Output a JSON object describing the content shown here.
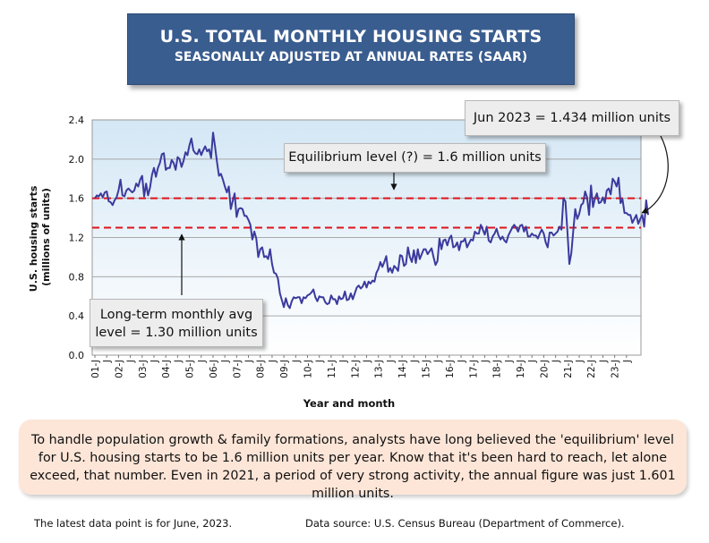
{
  "title": {
    "line1": "U.S. TOTAL MONTHLY HOUSING STARTS",
    "line2": "SEASONALLY ADJUSTED AT ANNUAL RATES (SAAR)"
  },
  "annotations": {
    "latest": "Jun 2023 = 1.434 million units",
    "equilibrium": "Equilibrium level (?) = 1.6 million units",
    "longterm_line1": "Long-term monthly avg",
    "longterm_line2": "level = 1.30 million units"
  },
  "note_text": "To handle population growth & family formations, analysts have long believed the 'equilibrium' level for U.S. housing starts to be 1.6 million units per year. Know that it's been hard to reach, let alone exceed, that number. Even in 2021, a period of very strong activity, the annual figure was just 1.601 million units.",
  "footer": {
    "left": "The latest data point is for June, 2023.",
    "right": "Data source: U.S. Census Bureau (Department of Commerce)."
  },
  "colors": {
    "title_bg": "#3a5d8f",
    "series": "#3b3a9e",
    "reference_line": "#e0121b",
    "note_bg": "#fde6d8"
  },
  "chart_data": {
    "type": "line",
    "title": "U.S. TOTAL MONTHLY HOUSING STARTS",
    "subtitle": "SEASONALLY ADJUSTED AT ANNUAL RATES (SAAR)",
    "xlabel": "Year and month",
    "ylabel": "U.S. housing starts (millions of units)",
    "ylim": [
      0,
      2.4
    ],
    "yticks": [
      "0.0",
      "0.4",
      "0.8",
      "1.2",
      "1.6",
      "2.0",
      "2.4"
    ],
    "xticks": [
      "01-J",
      "J",
      "02-J",
      "J",
      "03-J",
      "J",
      "04-J",
      "J",
      "05-J",
      "J",
      "06-J",
      "J",
      "07-J",
      "J",
      "08-J",
      "J",
      "09-J",
      "J",
      "10-J",
      "J",
      "11-J",
      "J",
      "12-J",
      "J",
      "13-J",
      "J",
      "14-J",
      "J",
      "15-J",
      "J",
      "16-J",
      "J",
      "17-J",
      "J",
      "18-J",
      "J",
      "19-J",
      "J",
      "20-J",
      "J",
      "21-J",
      "J",
      "22-J",
      "J",
      "23-J",
      "J"
    ],
    "grid": true,
    "legend": "none",
    "reference_lines": [
      {
        "label": "Equilibrium level (?) = 1.6 million units",
        "y": 1.6
      },
      {
        "label": "Long-term monthly avg level = 1.30 million units",
        "y": 1.3
      }
    ],
    "series": [
      {
        "start": "2001-01",
        "frequency": "monthly",
        "values": [
          1.6,
          1.63,
          1.62,
          1.65,
          1.61,
          1.66,
          1.67,
          1.57,
          1.56,
          1.53,
          1.58,
          1.61,
          1.68,
          1.79,
          1.63,
          1.62,
          1.68,
          1.7,
          1.68,
          1.66,
          1.68,
          1.75,
          1.72,
          1.79,
          1.83,
          1.62,
          1.75,
          1.63,
          1.71,
          1.84,
          1.91,
          1.82,
          1.91,
          1.96,
          2.05,
          2.06,
          1.89,
          1.91,
          1.91,
          1.99,
          1.96,
          1.89,
          2.02,
          2.0,
          1.92,
          1.98,
          2.07,
          2.04,
          2.14,
          2.21,
          2.09,
          2.06,
          2.05,
          2.1,
          2.04,
          2.09,
          2.13,
          2.08,
          2.1,
          2.01,
          2.27,
          2.13,
          1.97,
          1.83,
          1.85,
          1.79,
          1.72,
          1.66,
          1.72,
          1.49,
          1.57,
          1.65,
          1.41,
          1.49,
          1.5,
          1.49,
          1.42,
          1.42,
          1.38,
          1.33,
          1.18,
          1.26,
          1.19,
          1.0,
          1.08,
          1.1,
          1.0,
          1.01,
          0.98,
          1.08,
          0.93,
          0.84,
          0.83,
          0.78,
          0.63,
          0.56,
          0.49,
          0.58,
          0.51,
          0.48,
          0.55,
          0.59,
          0.58,
          0.59,
          0.59,
          0.53,
          0.59,
          0.58,
          0.61,
          0.62,
          0.64,
          0.67,
          0.59,
          0.55,
          0.6,
          0.59,
          0.59,
          0.54,
          0.52,
          0.53,
          0.61,
          0.57,
          0.57,
          0.52,
          0.6,
          0.57,
          0.58,
          0.65,
          0.56,
          0.57,
          0.63,
          0.57,
          0.63,
          0.69,
          0.71,
          0.68,
          0.7,
          0.75,
          0.69,
          0.75,
          0.73,
          0.76,
          0.75,
          0.84,
          0.88,
          0.95,
          0.9,
          0.95,
          1.01,
          0.85,
          0.89,
          0.84,
          0.91,
          0.89,
          0.86,
          1.02,
          1.01,
          0.91,
          0.93,
          1.1,
          1.0,
          0.95,
          1.07,
          0.94,
          1.08,
          0.98,
          1.03,
          1.08,
          1.08,
          1.03,
          1.06,
          1.09,
          1.0,
          0.92,
          0.96,
          1.19,
          1.08,
          1.17,
          1.18,
          1.12,
          1.19,
          1.22,
          1.1,
          1.11,
          1.15,
          1.07,
          1.16,
          1.16,
          1.19,
          1.1,
          1.14,
          1.18,
          1.17,
          1.26,
          1.24,
          1.24,
          1.33,
          1.28,
          1.23,
          1.31,
          1.17,
          1.15,
          1.21,
          1.24,
          1.29,
          1.22,
          1.18,
          1.21,
          1.17,
          1.15,
          1.22,
          1.26,
          1.3,
          1.33,
          1.3,
          1.26,
          1.32,
          1.33,
          1.26,
          1.31,
          1.21,
          1.21,
          1.24,
          1.22,
          1.22,
          1.19,
          1.24,
          1.28,
          1.24,
          1.15,
          1.1,
          1.25,
          1.25,
          1.22,
          1.24,
          1.26,
          1.31,
          1.28,
          1.6,
          1.57,
          1.27,
          0.93,
          1.04,
          1.27,
          1.49,
          1.39,
          1.44,
          1.53,
          1.55,
          1.67,
          1.61,
          1.43,
          1.73,
          1.51,
          1.6,
          1.65,
          1.55,
          1.56,
          1.61,
          1.55,
          1.68,
          1.7,
          1.64,
          1.8,
          1.77,
          1.72,
          1.81,
          1.55,
          1.59,
          1.45,
          1.45,
          1.43,
          1.43,
          1.35,
          1.39,
          1.43,
          1.34,
          1.39,
          1.43,
          1.31,
          1.58,
          1.43
        ]
      }
    ]
  }
}
